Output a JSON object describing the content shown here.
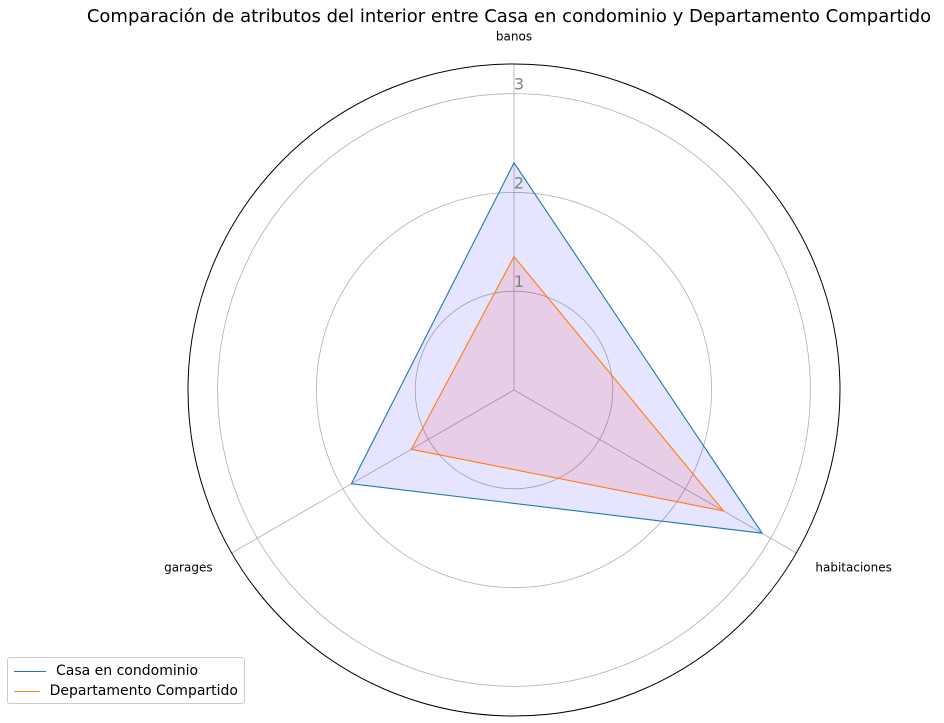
{
  "chart_data": {
    "type": "radar",
    "title": "Comparación de atributos del interior entre Casa en condominio y Departamento Compartido",
    "categories": [
      "banos",
      "habitaciones",
      "garages"
    ],
    "rlim": [
      0,
      3.3
    ],
    "rticks": [
      1,
      2,
      3
    ],
    "grid": true,
    "legend_position": "bottom-left",
    "series": [
      {
        "name": "Casa en condominio",
        "values": [
          2.3,
          2.9,
          1.9
        ],
        "color": "#1f77b4",
        "fill": "#0000ff",
        "fill_opacity": 0.1
      },
      {
        "name": "Departamento Compartido",
        "values": [
          1.35,
          2.45,
          1.2
        ],
        "color": "#ff7f0e",
        "fill": "#ff0000",
        "fill_opacity": 0.1
      }
    ]
  }
}
